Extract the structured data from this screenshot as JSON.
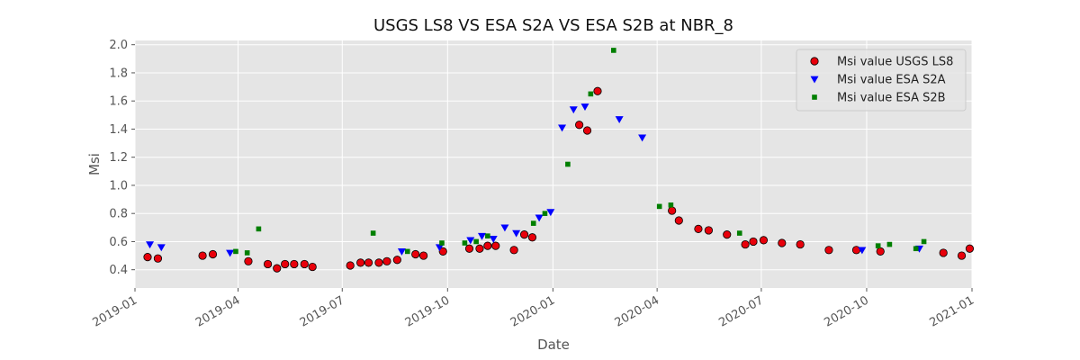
{
  "chart_data": {
    "type": "scatter",
    "title": "USGS LS8 VS ESA S2A VS ESA S2B at NBR_8",
    "xlabel": "Date",
    "ylabel": "Msi",
    "xlim": [
      "2019-01-01",
      "2021-01-01"
    ],
    "ylim": [
      0.27,
      2.03
    ],
    "x_ticks": [
      "2019-01",
      "2019-04",
      "2019-07",
      "2019-10",
      "2020-01",
      "2020-04",
      "2020-07",
      "2020-10",
      "2021-01"
    ],
    "y_ticks": [
      "0.4",
      "0.6",
      "0.8",
      "1.0",
      "1.2",
      "1.4",
      "1.6",
      "1.8",
      "2.0"
    ],
    "grid": true,
    "legend_position": "upper right",
    "series": [
      {
        "name": "Msi value USGS LS8",
        "marker": "circle",
        "color": "#e8000b",
        "edge_color": "#000000",
        "points": [
          [
            "2019-01-12",
            0.49
          ],
          [
            "2019-01-21",
            0.48
          ],
          [
            "2019-03-01",
            0.5
          ],
          [
            "2019-03-10",
            0.51
          ],
          [
            "2019-04-10",
            0.46
          ],
          [
            "2019-04-27",
            0.44
          ],
          [
            "2019-05-05",
            0.41
          ],
          [
            "2019-05-12",
            0.44
          ],
          [
            "2019-05-20",
            0.44
          ],
          [
            "2019-05-29",
            0.44
          ],
          [
            "2019-06-05",
            0.42
          ],
          [
            "2019-07-08",
            0.43
          ],
          [
            "2019-07-17",
            0.45
          ],
          [
            "2019-07-24",
            0.45
          ],
          [
            "2019-08-02",
            0.45
          ],
          [
            "2019-08-09",
            0.46
          ],
          [
            "2019-08-18",
            0.47
          ],
          [
            "2019-09-03",
            0.51
          ],
          [
            "2019-09-10",
            0.5
          ],
          [
            "2019-09-27",
            0.53
          ],
          [
            "2019-10-20",
            0.55
          ],
          [
            "2019-10-29",
            0.55
          ],
          [
            "2019-11-05",
            0.57
          ],
          [
            "2019-11-12",
            0.57
          ],
          [
            "2019-11-28",
            0.54
          ],
          [
            "2019-12-07",
            0.65
          ],
          [
            "2019-12-14",
            0.63
          ],
          [
            "2020-01-24",
            1.43
          ],
          [
            "2020-01-31",
            1.39
          ],
          [
            "2020-02-09",
            1.67
          ],
          [
            "2020-04-14",
            0.82
          ],
          [
            "2020-04-20",
            0.75
          ],
          [
            "2020-05-07",
            0.69
          ],
          [
            "2020-05-16",
            0.68
          ],
          [
            "2020-06-01",
            0.65
          ],
          [
            "2020-06-17",
            0.58
          ],
          [
            "2020-06-24",
            0.6
          ],
          [
            "2020-07-03",
            0.61
          ],
          [
            "2020-07-19",
            0.59
          ],
          [
            "2020-08-04",
            0.58
          ],
          [
            "2020-08-29",
            0.54
          ],
          [
            "2020-09-22",
            0.54
          ],
          [
            "2020-10-13",
            0.53
          ],
          [
            "2020-12-07",
            0.52
          ],
          [
            "2020-12-23",
            0.5
          ],
          [
            "2020-12-30",
            0.55
          ]
        ]
      },
      {
        "name": "Msi value ESA S2A",
        "marker": "triangle_down",
        "color": "#0000ff",
        "points": [
          [
            "2019-01-14",
            0.58
          ],
          [
            "2019-01-24",
            0.56
          ],
          [
            "2019-03-25",
            0.52
          ],
          [
            "2019-08-22",
            0.53
          ],
          [
            "2019-09-24",
            0.56
          ],
          [
            "2019-10-21",
            0.61
          ],
          [
            "2019-10-31",
            0.64
          ],
          [
            "2019-11-10",
            0.62
          ],
          [
            "2019-11-20",
            0.7
          ],
          [
            "2019-11-30",
            0.66
          ],
          [
            "2019-12-20",
            0.77
          ],
          [
            "2019-12-30",
            0.81
          ],
          [
            "2020-01-09",
            1.41
          ],
          [
            "2020-01-19",
            1.54
          ],
          [
            "2020-01-29",
            1.56
          ],
          [
            "2020-02-28",
            1.47
          ],
          [
            "2020-03-19",
            1.34
          ],
          [
            "2020-09-27",
            0.54
          ],
          [
            "2020-11-16",
            0.55
          ]
        ]
      },
      {
        "name": "Msi value ESA S2B",
        "marker": "square",
        "color": "#007f00",
        "points": [
          [
            "2019-03-30",
            0.53
          ],
          [
            "2019-04-09",
            0.52
          ],
          [
            "2019-04-19",
            0.69
          ],
          [
            "2019-07-28",
            0.66
          ],
          [
            "2019-08-27",
            0.53
          ],
          [
            "2019-09-26",
            0.59
          ],
          [
            "2019-10-16",
            0.59
          ],
          [
            "2019-10-26",
            0.6
          ],
          [
            "2019-11-05",
            0.64
          ],
          [
            "2019-12-15",
            0.73
          ],
          [
            "2019-12-25",
            0.8
          ],
          [
            "2020-01-14",
            1.15
          ],
          [
            "2020-02-03",
            1.65
          ],
          [
            "2020-02-23",
            1.96
          ],
          [
            "2020-04-03",
            0.85
          ],
          [
            "2020-04-13",
            0.86
          ],
          [
            "2020-06-12",
            0.66
          ],
          [
            "2020-10-11",
            0.57
          ],
          [
            "2020-10-21",
            0.58
          ],
          [
            "2020-11-20",
            0.6
          ],
          [
            "2020-11-13",
            0.55
          ]
        ]
      }
    ]
  }
}
